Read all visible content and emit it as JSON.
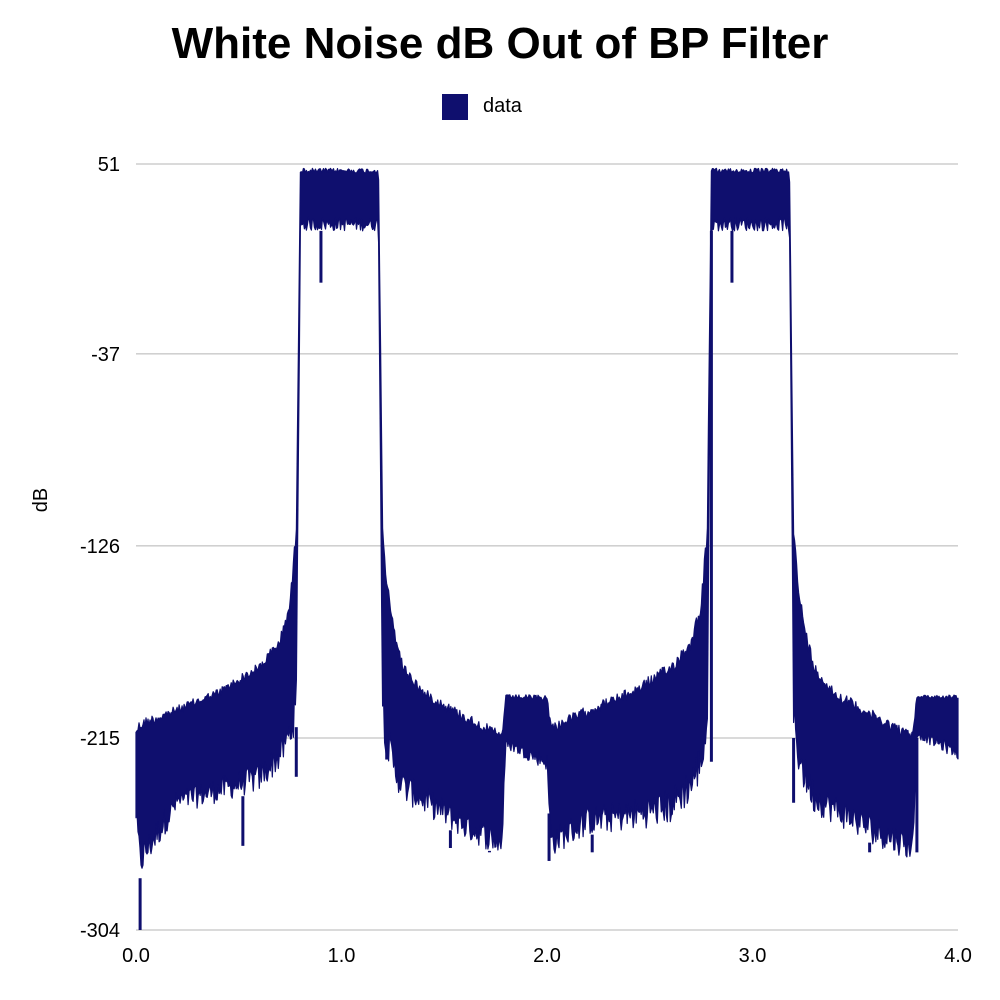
{
  "chart_data": {
    "type": "line",
    "title": "White Noise dB Out of BP Filter",
    "xlabel": "",
    "ylabel": "dB",
    "xlim": [
      0.0,
      4.0
    ],
    "ylim": [
      -304,
      51
    ],
    "x_ticks": [
      "0.0",
      "1.0",
      "2.0",
      "3.0",
      "4.0"
    ],
    "x_tick_values": [
      0.0,
      1.0,
      2.0,
      3.0,
      4.0
    ],
    "y_ticks": [
      "51",
      "-37",
      "-126",
      "-215",
      "-304"
    ],
    "y_tick_values": [
      51,
      -37,
      -126,
      -215,
      -304
    ],
    "grid": true,
    "legend_position": "top-center",
    "series": [
      {
        "name": "data",
        "color": "#0f0f6e",
        "envelope": {
          "x": [
            0.0,
            0.02,
            0.2,
            0.4,
            0.6,
            0.7,
            0.75,
            0.78,
            0.8,
            0.82,
            1.0,
            1.18,
            1.2,
            1.22,
            1.25,
            1.3,
            1.4,
            1.6,
            1.78,
            1.8,
            2.0,
            2.02,
            2.2,
            2.4,
            2.6,
            2.7,
            2.75,
            2.78,
            2.8,
            2.82,
            3.0,
            3.18,
            3.2,
            3.22,
            3.25,
            3.3,
            3.4,
            3.6,
            3.78,
            3.8,
            4.0
          ],
          "upper": [
            -210,
            -206,
            -200,
            -192,
            -180,
            -168,
            -150,
            -115,
            49,
            49,
            49,
            49,
            -115,
            -140,
            -160,
            -180,
            -192,
            -203,
            -212,
            -195,
            -195,
            -208,
            -200,
            -192,
            -180,
            -168,
            -150,
            -115,
            49,
            49,
            49,
            49,
            -115,
            -140,
            -160,
            -180,
            -192,
            -203,
            -212,
            -195,
            -195
          ],
          "lower": [
            -255,
            -280,
            -250,
            -245,
            -240,
            -230,
            -220,
            -210,
            20,
            20,
            20,
            20,
            -210,
            -225,
            -235,
            -245,
            -250,
            -262,
            -270,
            -220,
            -230,
            -270,
            -260,
            -258,
            -255,
            -245,
            -235,
            -220,
            20,
            20,
            20,
            20,
            -215,
            -230,
            -240,
            -250,
            -255,
            -265,
            -272,
            -215,
            -225
          ],
          "spikes": [
            {
              "x": 0.02,
              "y": -304
            },
            {
              "x": 0.52,
              "y": -265
            },
            {
              "x": 0.78,
              "y": -233
            },
            {
              "x": 0.9,
              "y": -4
            },
            {
              "x": 1.22,
              "y": -220
            },
            {
              "x": 1.53,
              "y": -266
            },
            {
              "x": 1.72,
              "y": -268
            },
            {
              "x": 2.01,
              "y": -272
            },
            {
              "x": 2.22,
              "y": -268
            },
            {
              "x": 2.8,
              "y": -226
            },
            {
              "x": 2.9,
              "y": -4
            },
            {
              "x": 3.2,
              "y": -245
            },
            {
              "x": 3.57,
              "y": -268
            },
            {
              "x": 3.8,
              "y": -268
            }
          ]
        }
      }
    ]
  }
}
